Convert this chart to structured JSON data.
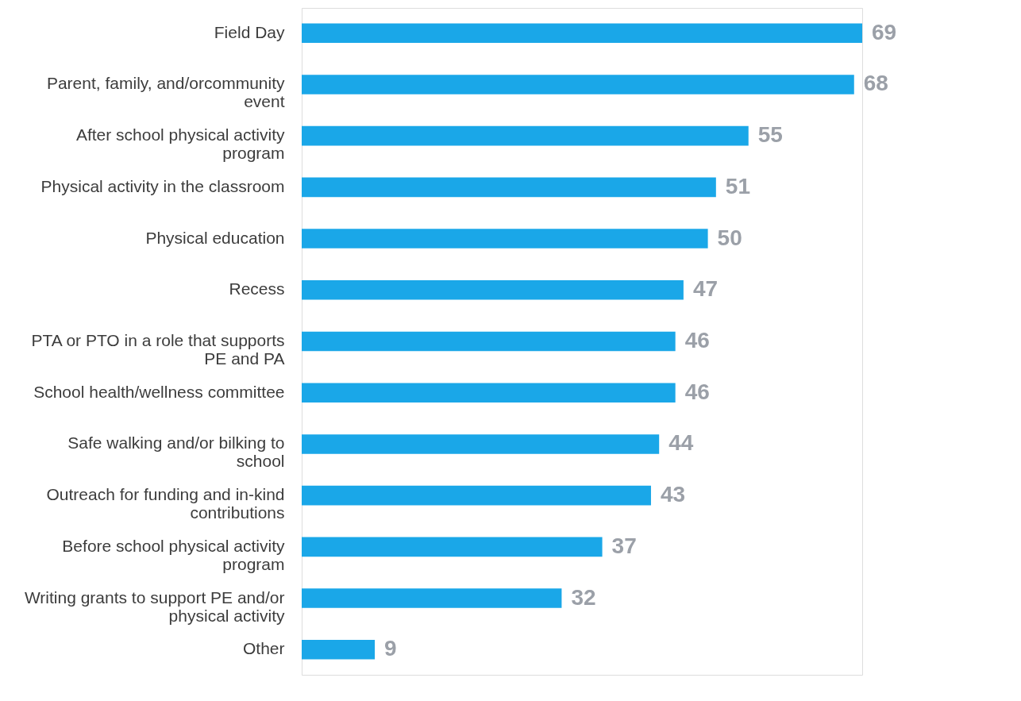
{
  "chart_data": {
    "type": "bar",
    "orientation": "horizontal",
    "categories": [
      "Field Day",
      "Parent, family, and/orcommunity event",
      "After school physical activity program",
      "Physical activity in the classroom",
      "Physical education",
      "Recess",
      "PTA or PTO in a role that supports PE and PA",
      "School health/wellness committee",
      "Safe walking and/or bilking to school",
      "Outreach for funding and in-kind contributions",
      "Before school physical activity program",
      "Writing grants to support PE and/or physical activity",
      "Other"
    ],
    "values": [
      69,
      68,
      55,
      51,
      50,
      47,
      46,
      46,
      44,
      43,
      37,
      32,
      9
    ],
    "color": "#1aa7e8",
    "data_labels": true,
    "grid": false
  }
}
